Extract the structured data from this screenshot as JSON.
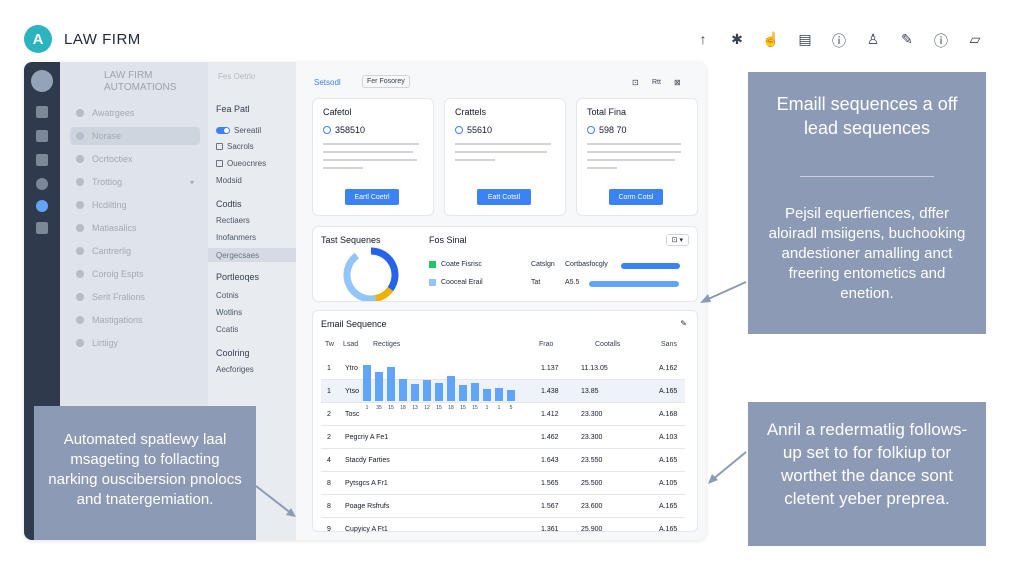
{
  "brand": {
    "name": "LAW FIRM",
    "logo_letter": "A",
    "accent": "#2bb3c0"
  },
  "top_icons": [
    "↑",
    "✱",
    "☝",
    "▤",
    "ⓘ",
    "♙",
    "✎",
    "ⓘ",
    "▱"
  ],
  "nav1": {
    "title_line1": "LAW FIRM",
    "title_line2": "AUTOMATIONS",
    "items": [
      {
        "label": "Awatrgees"
      },
      {
        "label": "Norase"
      },
      {
        "label": "Ocrtoctiex"
      },
      {
        "label": "Trottiog"
      },
      {
        "label": "Hcdiltlng"
      },
      {
        "label": "Matiasalics"
      },
      {
        "label": "Cantrerlig"
      },
      {
        "label": "Coroig Espts"
      },
      {
        "label": "Serit Fralions"
      },
      {
        "label": "Mastigations"
      },
      {
        "label": "Lirtiigy"
      }
    ]
  },
  "nav2": {
    "top": "Fes Oetrlo",
    "head1": "Fea Patl",
    "items1": [
      "Sereatil",
      "Sacrols",
      "Oueocnres",
      "Modsid"
    ],
    "head2": "Codtis",
    "items2": [
      "Rectiaers",
      "Inofanmers",
      "Qergecsaes"
    ],
    "head3": "Portleoqes",
    "items3": [
      "Cotnis",
      "Wotlins",
      "Ccatis"
    ],
    "head4": "Coolring",
    "items4": [
      "Aecforiges"
    ]
  },
  "toolbar": {
    "tab_active": "Setsodl",
    "tab_second": "Fer Fosorey",
    "icon1": "⊡",
    "icon2": "Rtt",
    "icon3": "⊠"
  },
  "stats": [
    {
      "title": "Cafetol",
      "value": "358510",
      "button": "Eartl Coetrl"
    },
    {
      "title": "Crattels",
      "value": "55610",
      "button": "Eatt Cotstl"
    },
    {
      "title": "Total Fina",
      "value": "598 70",
      "button": "Corm Cotsl"
    }
  ],
  "sequences_panel": {
    "title": "Tast Sequenes",
    "subtitle": "Fos Sinal",
    "dropdown_icon": "⊡ ▾",
    "legend": [
      {
        "label": "Coate Fisrisc",
        "col": "Catslgn",
        "value": "Cortbasfocgly",
        "color": "#22c55e",
        "fill": 0.95
      },
      {
        "label": "Cooceal Erail",
        "col": "Tat",
        "value": "A5.5",
        "color": "#93c5fd",
        "fill": 0.96
      }
    ],
    "donut": {
      "segments": [
        {
          "color": "#2563eb",
          "value": 35
        },
        {
          "color": "#eab308",
          "value": 12
        },
        {
          "color": "#93c5fd",
          "value": 43
        }
      ]
    }
  },
  "email_table": {
    "title": "Email Sequence",
    "edit_icon": "✎",
    "columns": [
      "Tw",
      "Lsad",
      "Rectiges",
      "Frao",
      "Cootalls",
      "Sans"
    ],
    "rows": [
      {
        "n": "1",
        "name": "Ytro",
        "a": "1.137",
        "b": "11.13.05",
        "c": "A.162"
      },
      {
        "n": "1",
        "name": "Ytso",
        "a": "1.438",
        "b": "13.85",
        "c": "A.165"
      },
      {
        "n": "2",
        "name": "Tosc",
        "a": "1.412",
        "b": "23.300",
        "c": "A.168"
      },
      {
        "n": "2",
        "name": "Pegcriy A Fe1",
        "a": "1.462",
        "b": "23.300",
        "c": "A.103"
      },
      {
        "n": "4",
        "name": "Stacdy Farties",
        "a": "1.643",
        "b": "23.550",
        "c": "A.165"
      },
      {
        "n": "8",
        "name": "Pytsgcs A Fr1",
        "a": "1.565",
        "b": "25.500",
        "c": "A.105"
      },
      {
        "n": "8",
        "name": "Poage Rsfrufs",
        "a": "1.567",
        "b": "23.600",
        "c": "A.165"
      },
      {
        "n": "9",
        "name": "Cupyicy A Ft1",
        "a": "1.361",
        "b": "25.900",
        "c": "A.165"
      }
    ],
    "mini_bars": [
      0.72,
      0.58,
      0.68,
      0.44,
      0.34,
      0.42,
      0.36,
      0.5,
      0.32,
      0.36,
      0.24,
      0.26,
      0.22
    ],
    "mini_labels": [
      "1",
      "35",
      "15",
      "18",
      "13",
      "12",
      "15",
      "18",
      "15",
      "15",
      "1",
      "1",
      "5"
    ]
  },
  "callouts": {
    "left": "Automated spatlewy laal msageting to follacting narking ouscibersion pnolocs and tnatergemiation.",
    "right_top_title": "Emaill sequences a off lead sequences",
    "right_top_body": "Pejsil equerfiences, dffer aloiradl msiigens, buchooking andestioner amalling anct freering entometics and enetion.",
    "right_bottom": "Anril a redermatlig follows-up set to for folkiup tor worthet the dance sont cletent yeber preprea.",
    "color": "#8d9ab6"
  }
}
